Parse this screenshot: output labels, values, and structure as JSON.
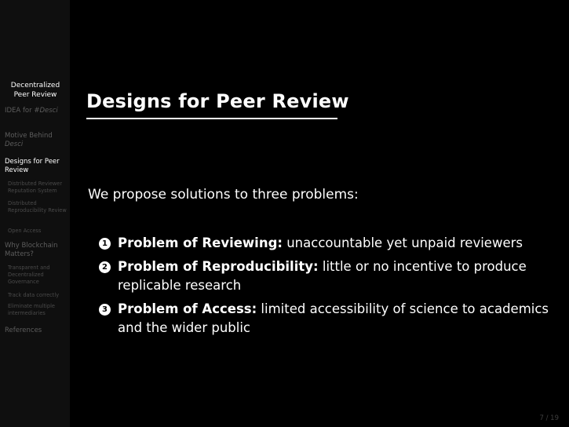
{
  "sidebar": {
    "title": "Decentralized Peer Review",
    "sections": [
      {
        "label_parts": [
          "IDEA for ",
          "#Desci"
        ],
        "active": false
      },
      {
        "label_parts": [
          "Motive Behind ",
          "Desci"
        ],
        "active": false
      },
      {
        "label": "Designs for Peer Review",
        "active": true
      },
      {
        "label": "Why Blockchain Matters?",
        "active": false
      },
      {
        "label": "References",
        "active": false
      }
    ],
    "subsections": [
      "Distributed Reviewer Reputation System",
      "Distributed Reproducibility Review",
      "Open Access",
      "Transparent and Decentralized Governance",
      "Track data correctly",
      "Eliminate multiple intermediaries"
    ]
  },
  "slide": {
    "title": "Designs for Peer Review",
    "intro": "We propose solutions to three problems:",
    "items": [
      {
        "number": "1",
        "head": "Problem of Reviewing:",
        "text": " unaccountable yet unpaid reviewers"
      },
      {
        "number": "2",
        "head": "Problem of Reproducibility:",
        "text": " little or no incentive to produce replicable research"
      },
      {
        "number": "3",
        "head": "Problem of Access:",
        "text": " limited accessibility of science to academics and the wider public"
      }
    ],
    "page": "7 / 19"
  },
  "colors": {
    "background": "#000000",
    "sidebar": "#0f0f0f",
    "text": "#ffffff",
    "sidebar_inactive": "#5d5d5d"
  }
}
